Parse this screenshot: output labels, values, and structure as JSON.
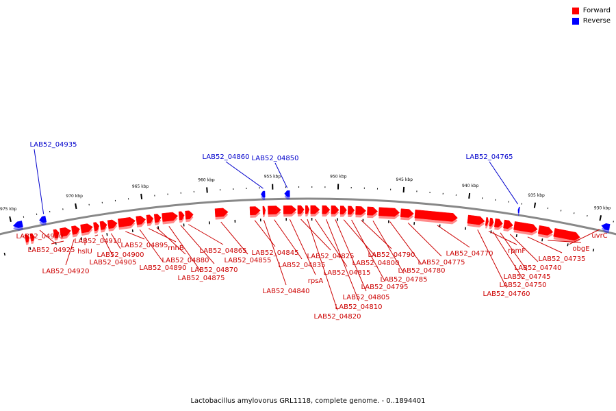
{
  "legend": [
    {
      "label": "Forward",
      "color": "#ff0000"
    },
    {
      "label": "Reverse",
      "color": "#0000ff"
    }
  ],
  "caption": "Lactobacillus amylovorus GRL1118, complete genome. - 0..1894401",
  "colors": {
    "forward": "#ff0000",
    "reverse": "#0000ff",
    "backbone": "#888888",
    "forward_label": "#cc0000",
    "reverse_label": "#0000cc"
  },
  "ticks": [
    {
      "label": "975 kbp",
      "kbp": 975
    },
    {
      "label": "970 kbp",
      "kbp": 970
    },
    {
      "label": "965 kbp",
      "kbp": 965
    },
    {
      "label": "960 kbp",
      "kbp": 960
    },
    {
      "label": "955 kbp",
      "kbp": 955
    },
    {
      "label": "950 kbp",
      "kbp": 950
    },
    {
      "label": "945 kbp",
      "kbp": 945
    },
    {
      "label": "940 kbp",
      "kbp": 940
    },
    {
      "label": "935 kbp",
      "kbp": 935
    },
    {
      "label": "930 kbp",
      "kbp": 930
    }
  ],
  "reverse_genes": [
    {
      "name": "LAB52_04935",
      "start": 972.9,
      "end": 972.4
    },
    {
      "name": "LAB52_04860",
      "start": 955.9,
      "end": 955.6
    },
    {
      "name": "LAB52_04850",
      "start": 954.1,
      "end": 953.7
    },
    {
      "name": "LAB52_04765",
      "start": 936.2,
      "end": 936.1
    }
  ],
  "reverse_extra": [
    {
      "start": 974.9,
      "end": 974.2
    },
    {
      "start": 929.8,
      "end": 929.2
    }
  ],
  "forward_genes": [
    {
      "name": "LAB52_04930",
      "start": 972.0,
      "end": 971.6
    },
    {
      "name": "LAB52_04925",
      "start": 971.5,
      "end": 970.7
    },
    {
      "name": "LAB52_04920",
      "start": 970.6,
      "end": 970.0
    },
    {
      "name": "hslU",
      "start": 969.9,
      "end": 969.0
    },
    {
      "name": "LAB52_04910",
      "start": 968.9,
      "end": 968.5
    },
    {
      "name": "LAB52_04905",
      "start": 968.4,
      "end": 967.9
    },
    {
      "name": "LAB52_04900",
      "start": 967.8,
      "end": 967.1
    },
    {
      "name": "LAB52_04895",
      "start": 967.0,
      "end": 965.7
    },
    {
      "name": "LAB52_04890",
      "start": 965.6,
      "end": 964.9
    },
    {
      "name": "rnhB",
      "start": 964.8,
      "end": 964.3
    },
    {
      "name": "LAB52_04880",
      "start": 964.2,
      "end": 963.7
    },
    {
      "name": "LAB52_04875",
      "start": 963.6,
      "end": 962.4
    },
    {
      "name": "LAB52_04870",
      "start": 962.3,
      "end": 961.9
    },
    {
      "name": "LAB52_04865",
      "start": 961.8,
      "end": 961.2
    },
    {
      "name": "LAB52_04855",
      "start": 959.5,
      "end": 958.5
    },
    {
      "name": "LAB52_04845",
      "start": 956.8,
      "end": 956.0
    },
    {
      "name": "LAB52_04840",
      "start": 955.8,
      "end": 955.6
    },
    {
      "name": "LAB52_04835",
      "start": 955.4,
      "end": 954.4
    },
    {
      "name": "rpsA",
      "start": 954.2,
      "end": 953.2
    },
    {
      "name": "LAB52_04825",
      "start": 953.1,
      "end": 952.6
    },
    {
      "name": "LAB52_04820",
      "start": 952.5,
      "end": 952.2
    },
    {
      "name": "LAB52_04815",
      "start": 952.1,
      "end": 951.4
    },
    {
      "name": "LAB52_04810",
      "start": 951.2,
      "end": 950.6
    },
    {
      "name": "LAB52_04805",
      "start": 950.5,
      "end": 949.9
    },
    {
      "name": "LAB52_04800",
      "start": 949.8,
      "end": 949.3
    },
    {
      "name": "LAB52_04795",
      "start": 949.2,
      "end": 948.7
    },
    {
      "name": "LAB52_04790",
      "start": 948.6,
      "end": 947.8
    },
    {
      "name": "LAB52_04785",
      "start": 947.7,
      "end": 946.9
    },
    {
      "name": "LAB52_04780",
      "start": 946.8,
      "end": 945.2
    },
    {
      "name": "LAB52_04775",
      "start": 945.1,
      "end": 944.1
    },
    {
      "name": "LAB52_04770",
      "start": 944.0,
      "end": 940.7
    },
    {
      "name": "LAB52_04760",
      "start": 939.9,
      "end": 938.6
    },
    {
      "name": "rpmF",
      "start": 938.5,
      "end": 938.3
    },
    {
      "name": "LAB52_04750",
      "start": 938.2,
      "end": 937.9
    },
    {
      "name": "LAB52_04745",
      "start": 937.8,
      "end": 937.2
    },
    {
      "name": "LAB52_04740",
      "start": 937.1,
      "end": 936.4
    },
    {
      "name": "LAB52_04735",
      "start": 936.3,
      "end": 934.5
    },
    {
      "name": "obgE",
      "start": 934.4,
      "end": 933.3
    },
    {
      "name": "uvrC",
      "start": 933.2,
      "end": 931.2
    }
  ],
  "forward_extra": [
    {
      "start": 974.2,
      "end": 973.9
    },
    {
      "start": 973.8,
      "end": 973.5
    }
  ]
}
